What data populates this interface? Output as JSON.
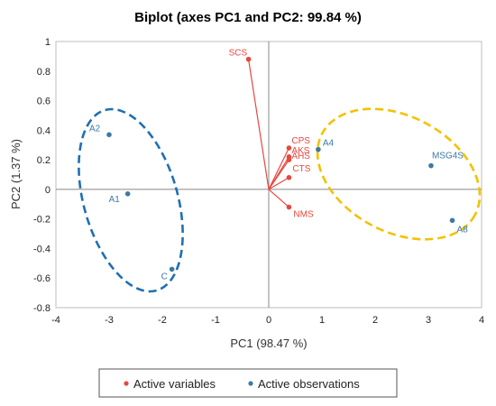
{
  "chart_data": {
    "type": "scatter",
    "title": "Biplot (axes PC1 and PC2: 99.84 %)",
    "xlabel": "PC1 (98.47 %)",
    "ylabel": "PC2 (1.37 %)",
    "xlim": [
      -4,
      4
    ],
    "ylim": [
      -0.8,
      1
    ],
    "xticks": [
      "-4",
      "-3",
      "-2",
      "-1",
      "0",
      "1",
      "2",
      "3",
      "4"
    ],
    "yticks": [
      "-0.8",
      "-0.6",
      "-0.4",
      "-0.2",
      "0",
      "0.2",
      "0.4",
      "0.6",
      "0.8",
      "1"
    ],
    "variables": [
      {
        "label": "SCS",
        "x": -0.38,
        "y": 0.88
      },
      {
        "label": "CPS",
        "x": 0.38,
        "y": 0.28
      },
      {
        "label": "AKS",
        "x": 0.38,
        "y": 0.22
      },
      {
        "label": "AHS",
        "x": 0.38,
        "y": 0.2
      },
      {
        "label": "CTS",
        "x": 0.38,
        "y": 0.08
      },
      {
        "label": "NMS",
        "x": 0.38,
        "y": -0.12
      }
    ],
    "observations": [
      {
        "label": "A2",
        "x": -3.0,
        "y": 0.37
      },
      {
        "label": "A1",
        "x": -2.65,
        "y": -0.03
      },
      {
        "label": "C",
        "x": -1.82,
        "y": -0.54
      },
      {
        "label": "A4",
        "x": 0.93,
        "y": 0.27
      },
      {
        "label": "MSG4S",
        "x": 3.05,
        "y": 0.16
      },
      {
        "label": "A8",
        "x": 3.45,
        "y": -0.21
      }
    ],
    "legend": {
      "placement": "bottom",
      "entries": [
        {
          "label": "Active variables",
          "color": "#e8473f"
        },
        {
          "label": "Active observations",
          "color": "#3b7aa3"
        }
      ]
    },
    "colors": {
      "variables": "#e8473f",
      "observations": "#3b7aa3",
      "group_left": "#1f6fb2",
      "group_right": "#f2c200",
      "axes": "#888888"
    }
  }
}
